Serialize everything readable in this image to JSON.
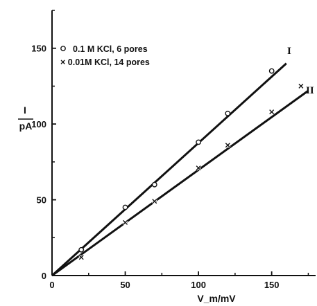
{
  "chart_data": {
    "type": "line",
    "xlabel": "V_m/mV",
    "ylabel_top": "I",
    "ylabel_bottom": "pA",
    "xlim": [
      0,
      180
    ],
    "ylim": [
      0,
      175
    ],
    "xticks": [
      0,
      50,
      100,
      150
    ],
    "yticks": [
      0,
      50,
      100,
      150
    ],
    "grid": false,
    "legend_position": "top-left",
    "series": [
      {
        "name": "0.1 M KCl,   6 pores",
        "marker": "circle",
        "label": "I",
        "x": [
          20,
          50,
          70,
          100,
          120,
          150
        ],
        "y": [
          17,
          45,
          60,
          88,
          107,
          135
        ],
        "fit": [
          [
            0,
            0
          ],
          [
            160,
            140
          ]
        ]
      },
      {
        "name": "× 0.01M KCl,  14 pores",
        "marker": "cross",
        "label": "II",
        "x": [
          20,
          50,
          70,
          100,
          120,
          150,
          170
        ],
        "y": [
          12,
          35,
          49,
          71,
          86,
          108,
          125
        ],
        "fit": [
          [
            0,
            0
          ],
          [
            175,
            122
          ]
        ]
      }
    ]
  }
}
